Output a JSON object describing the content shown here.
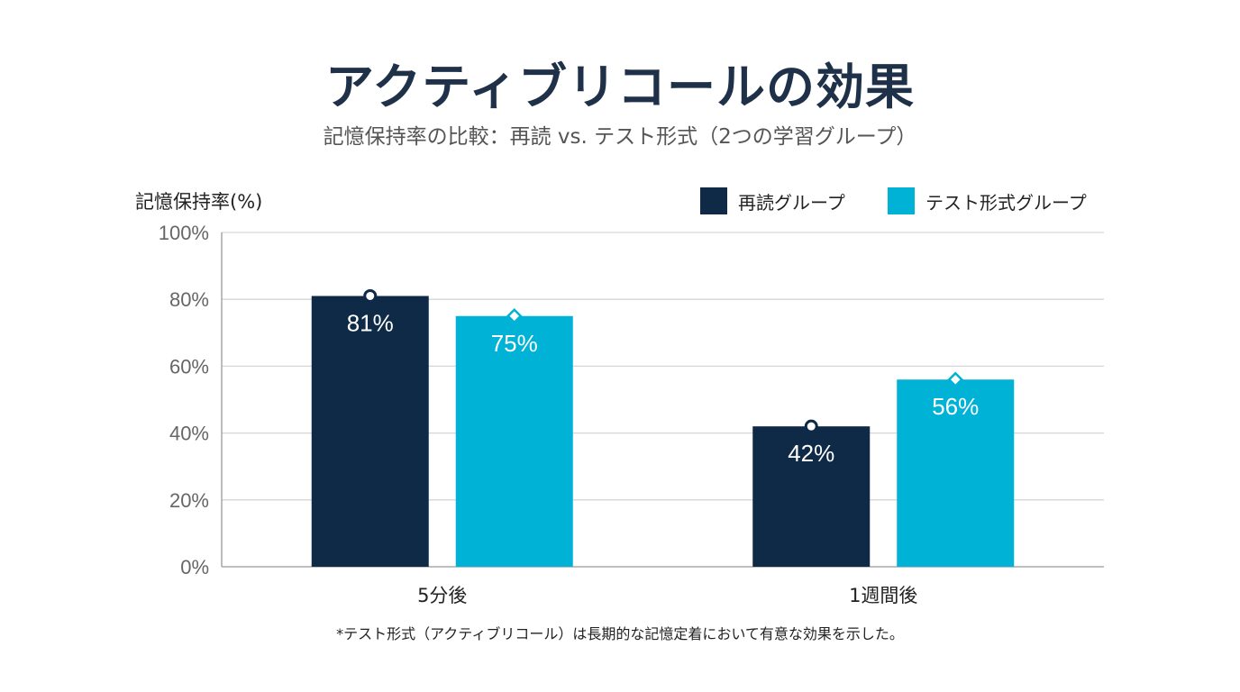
{
  "chart_data": {
    "type": "bar",
    "title": "アクティブリコールの効果",
    "subtitle": "記憶保持率の比較：再読 vs. テスト形式（2つの学習グループ）",
    "ylabel": "記憶保持率(%)",
    "xlabel": "",
    "ylim": [
      0,
      100
    ],
    "yticks": [
      0,
      20,
      40,
      60,
      80,
      100
    ],
    "ytick_labels": [
      "0%",
      "20%",
      "40%",
      "60%",
      "80%",
      "100%"
    ],
    "grid": true,
    "legend_position": "top-right",
    "categories": [
      "5分後",
      "1週間後"
    ],
    "series": [
      {
        "name": "再読グループ",
        "values": [
          81,
          42
        ],
        "labels": [
          "81%",
          "42%"
        ],
        "color": "#0f2a46",
        "marker": "circle"
      },
      {
        "name": "テスト形式グループ",
        "values": [
          75,
          56
        ],
        "labels": [
          "75%",
          "56%"
        ],
        "color": "#00b2d6",
        "marker": "diamond"
      }
    ],
    "footnote": "*テスト形式（アクティブリコール）は長期的な記憶定着において有意な効果を示した。"
  }
}
